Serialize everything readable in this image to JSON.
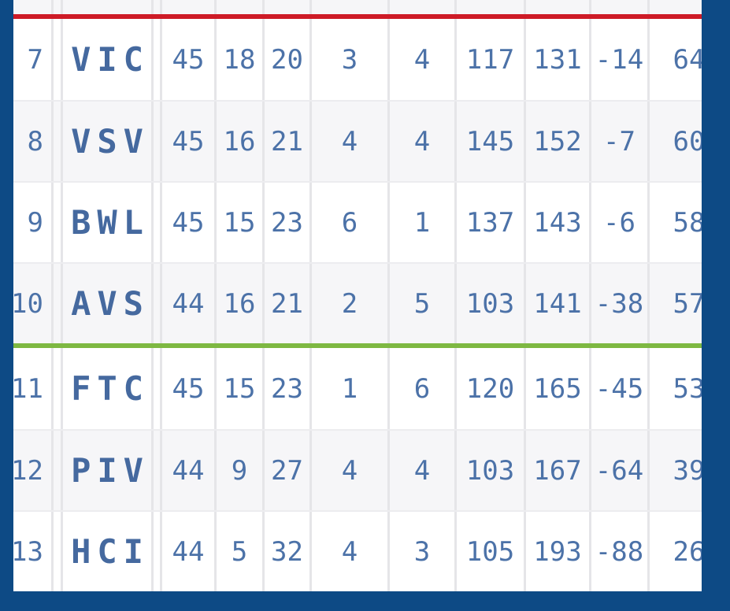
{
  "standings": {
    "rows": [
      {
        "pos": "7",
        "team": "VIC",
        "gp": "45",
        "w": "18",
        "l": "20",
        "otw": "3",
        "otl": "4",
        "gf": "117",
        "ga": "131",
        "diff": "-14",
        "pts": "64"
      },
      {
        "pos": "8",
        "team": "VSV",
        "gp": "45",
        "w": "16",
        "l": "21",
        "otw": "4",
        "otl": "4",
        "gf": "145",
        "ga": "152",
        "diff": "-7",
        "pts": "60"
      },
      {
        "pos": "9",
        "team": "BWL",
        "gp": "45",
        "w": "15",
        "l": "23",
        "otw": "6",
        "otl": "1",
        "gf": "137",
        "ga": "143",
        "diff": "-6",
        "pts": "58"
      },
      {
        "pos": "10",
        "team": "AVS",
        "gp": "44",
        "w": "16",
        "l": "21",
        "otw": "2",
        "otl": "5",
        "gf": "103",
        "ga": "141",
        "diff": "-38",
        "pts": "57"
      },
      {
        "pos": "11",
        "team": "FTC",
        "gp": "45",
        "w": "15",
        "l": "23",
        "otw": "1",
        "otl": "6",
        "gf": "120",
        "ga": "165",
        "diff": "-45",
        "pts": "53"
      },
      {
        "pos": "12",
        "team": "PIV",
        "gp": "44",
        "w": "9",
        "l": "27",
        "otw": "4",
        "otl": "4",
        "gf": "103",
        "ga": "167",
        "diff": "-64",
        "pts": "39"
      },
      {
        "pos": "13",
        "team": "HCI",
        "gp": "44",
        "w": "5",
        "l": "32",
        "otw": "4",
        "otl": "3",
        "gf": "105",
        "ga": "193",
        "diff": "-88",
        "pts": "26"
      }
    ],
    "red_divider_above_pos": "7",
    "green_divider_below_pos": "10"
  },
  "colors": {
    "frame_navy": "#0d4a85",
    "red_divider": "#ce1b27",
    "green_divider": "#7eb842",
    "text_blue": "#4c72a8",
    "team_blue": "#45699f",
    "row_alt_bg": "#f6f6f8",
    "gridline": "#e5e5e8"
  }
}
